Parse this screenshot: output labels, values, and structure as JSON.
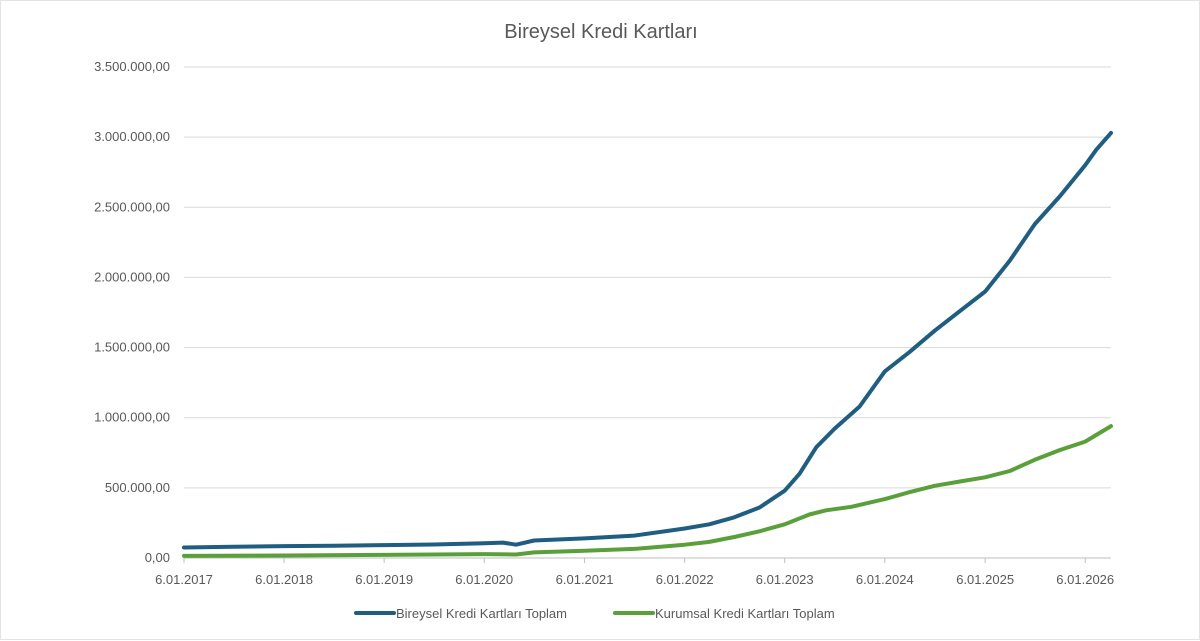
{
  "chart_data": {
    "type": "line",
    "title": "Bireysel Kredi Kartları",
    "xlabel": "",
    "ylabel": "",
    "ylim": [
      0,
      3500000
    ],
    "y_ticks": [
      0,
      500000,
      1000000,
      1500000,
      2000000,
      2500000,
      3000000,
      3500000
    ],
    "y_tick_labels": [
      "0,00",
      "500.000,00",
      "1.000.000,00",
      "1.500.000,00",
      "2.000.000,00",
      "2.500.000,00",
      "3.000.000,00",
      "3.500.000,00"
    ],
    "x_tick_dates": [
      "2017-01-06",
      "2018-01-06",
      "2019-01-06",
      "2020-01-06",
      "2021-01-06",
      "2022-01-06",
      "2023-01-06",
      "2024-01-06",
      "2025-01-06",
      "2026-01-06"
    ],
    "x_tick_labels": [
      "6.01.2017",
      "6.01.2018",
      "6.01.2019",
      "6.01.2020",
      "6.01.2021",
      "6.01.2022",
      "6.01.2023",
      "6.01.2024",
      "6.01.2025",
      "6.01.2026"
    ],
    "xlim": [
      "2017-01-06",
      "2026-04-10"
    ],
    "grid": true,
    "legend_position": "bottom",
    "series": [
      {
        "name": "Bireysel Kredi Kartları Toplam",
        "color": "#1f5e80",
        "x": [
          "2017-01-06",
          "2017-07-06",
          "2018-01-06",
          "2018-07-06",
          "2019-01-06",
          "2019-07-06",
          "2020-01-06",
          "2020-03-15",
          "2020-05-01",
          "2020-07-06",
          "2021-01-06",
          "2021-07-06",
          "2022-01-06",
          "2022-04-06",
          "2022-07-06",
          "2022-10-06",
          "2023-01-06",
          "2023-03-01",
          "2023-05-01",
          "2023-07-06",
          "2023-10-06",
          "2024-01-06",
          "2024-04-06",
          "2024-07-06",
          "2024-10-06",
          "2025-01-06",
          "2025-04-06",
          "2025-07-06",
          "2025-10-06",
          "2026-01-06",
          "2026-02-15",
          "2026-04-10"
        ],
        "values": [
          75000,
          80000,
          85000,
          88000,
          92000,
          96000,
          105000,
          110000,
          95000,
          125000,
          140000,
          160000,
          210000,
          240000,
          290000,
          360000,
          480000,
          600000,
          790000,
          920000,
          1080000,
          1330000,
          1470000,
          1620000,
          1760000,
          1900000,
          2120000,
          2380000,
          2580000,
          2800000,
          2910000,
          3030000
        ]
      },
      {
        "name": "Kurumsal Kredi Kartları Toplam",
        "color": "#5aa03a",
        "x": [
          "2017-01-06",
          "2018-01-06",
          "2019-01-06",
          "2020-01-06",
          "2020-05-01",
          "2020-07-06",
          "2021-01-06",
          "2021-07-06",
          "2022-01-06",
          "2022-04-06",
          "2022-07-06",
          "2022-10-06",
          "2023-01-06",
          "2023-04-06",
          "2023-06-06",
          "2023-09-06",
          "2024-01-06",
          "2024-04-06",
          "2024-07-06",
          "2024-10-06",
          "2025-01-06",
          "2025-04-06",
          "2025-07-06",
          "2025-10-06",
          "2026-01-06",
          "2026-04-10"
        ],
        "values": [
          15000,
          18000,
          22000,
          28000,
          25000,
          40000,
          52000,
          65000,
          95000,
          115000,
          150000,
          190000,
          240000,
          310000,
          340000,
          365000,
          420000,
          470000,
          515000,
          545000,
          575000,
          620000,
          700000,
          770000,
          830000,
          940000
        ]
      }
    ]
  }
}
